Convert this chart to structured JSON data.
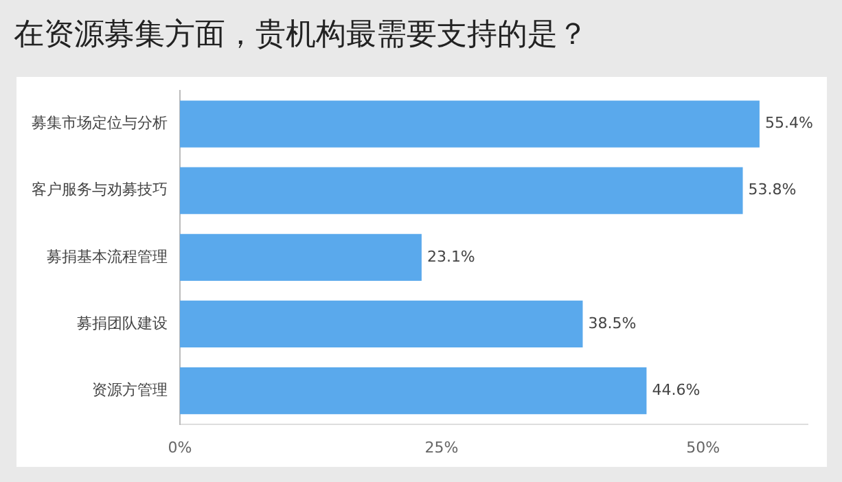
{
  "chart_data": {
    "type": "bar",
    "orientation": "horizontal",
    "title": "在资源募集方面，贵机构最需要支持的是？",
    "categories": [
      "募集市场定位与分析",
      "客户服务与劝募技巧",
      "募捐基本流程管理",
      "募捐团队建设",
      "资源方管理"
    ],
    "values": [
      55.4,
      53.8,
      23.1,
      38.5,
      44.6
    ],
    "value_labels": [
      "55.4%",
      "53.8%",
      "23.1%",
      "38.5%",
      "44.6%"
    ],
    "color": "#5aa9ec",
    "xlim": [
      0,
      60
    ],
    "xticks": [
      {
        "value": 0,
        "label": "0%"
      },
      {
        "value": 25,
        "label": "25%"
      },
      {
        "value": 50,
        "label": "50%"
      }
    ],
    "grid": false,
    "legend": false
  }
}
